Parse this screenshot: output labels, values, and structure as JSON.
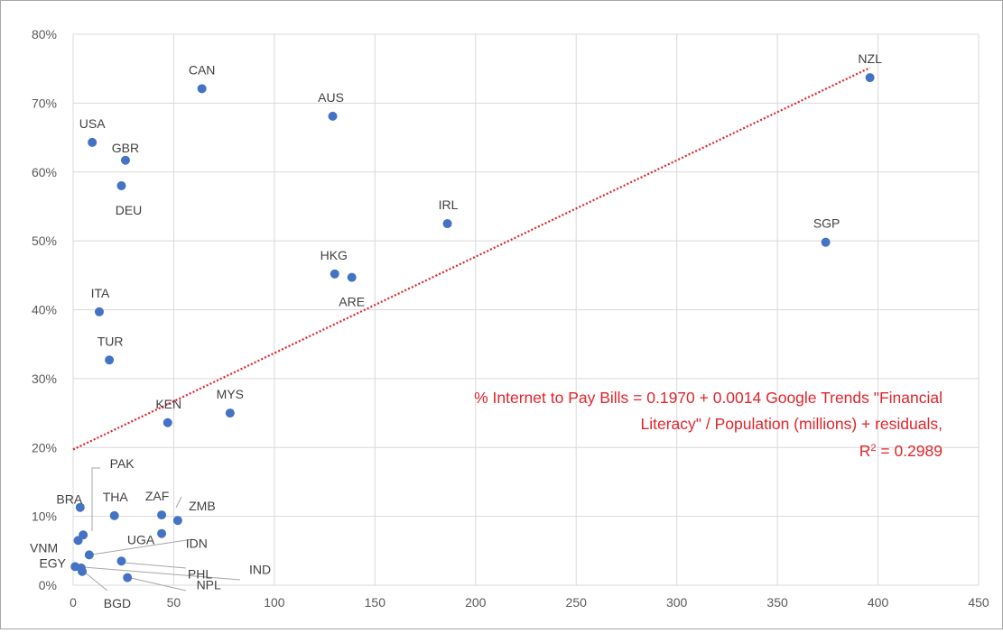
{
  "chart_data": {
    "type": "scatter",
    "xlim": [
      0,
      450
    ],
    "ylim": [
      0,
      0.8
    ],
    "x_ticks": [
      0,
      50,
      100,
      150,
      200,
      250,
      300,
      350,
      400,
      450
    ],
    "x_tick_labels": [
      "0",
      "50",
      "100",
      "150",
      "200",
      "250",
      "300",
      "350",
      "400",
      "450"
    ],
    "y_ticks": [
      0,
      0.1,
      0.2,
      0.3,
      0.4,
      0.5,
      0.6,
      0.7,
      0.8
    ],
    "y_tick_labels": [
      "0%",
      "10%",
      "20%",
      "30%",
      "40%",
      "50%",
      "60%",
      "70%",
      "80%"
    ],
    "grid": true,
    "point_color": "#4472C4",
    "trendline": {
      "style": "dotted",
      "color": "#E3242B",
      "intercept": 0.197,
      "slope": 0.0014,
      "x_range": [
        0,
        396
      ]
    },
    "annotation": {
      "color": "#E3242B",
      "line1": "% Internet to Pay Bills = 0.1970 + 0.0014 Google Trends \"Financial",
      "line2": "Literacy\" / Population (millions)  + residuals,",
      "r2_prefix": "R",
      "r2_sup": "2",
      "r2_value": " = 0.2989"
    },
    "points": [
      {
        "label": "NZL",
        "x": 396,
        "y": 0.737
      },
      {
        "label": "CAN",
        "x": 64,
        "y": 0.721
      },
      {
        "label": "AUS",
        "x": 129,
        "y": 0.681
      },
      {
        "label": "USA",
        "x": 9.5,
        "y": 0.643
      },
      {
        "label": "GBR",
        "x": 26,
        "y": 0.617
      },
      {
        "label": "DEU",
        "x": 24,
        "y": 0.58
      },
      {
        "label": "IRL",
        "x": 186,
        "y": 0.525
      },
      {
        "label": "SGP",
        "x": 374,
        "y": 0.498
      },
      {
        "label": "HKG",
        "x": 130,
        "y": 0.452
      },
      {
        "label": "ARE",
        "x": 138.5,
        "y": 0.447
      },
      {
        "label": "ITA",
        "x": 13,
        "y": 0.397
      },
      {
        "label": "TUR",
        "x": 18,
        "y": 0.327
      },
      {
        "label": "MYS",
        "x": 78,
        "y": 0.25
      },
      {
        "label": "KEN",
        "x": 47,
        "y": 0.236
      },
      {
        "label": "BRA",
        "x": 3.5,
        "y": 0.113
      },
      {
        "label": "THA",
        "x": 20.5,
        "y": 0.101
      },
      {
        "label": "ZAF",
        "x": 44,
        "y": 0.102
      },
      {
        "label": "ZMB",
        "x": 52,
        "y": 0.094
      },
      {
        "label": "UGA",
        "x": 44,
        "y": 0.075
      },
      {
        "label": "PAK",
        "x": 5,
        "y": 0.073
      },
      {
        "label": "VNM",
        "x": 2.5,
        "y": 0.065
      },
      {
        "label": "IDN",
        "x": 8,
        "y": 0.044
      },
      {
        "label": "PHL",
        "x": 24,
        "y": 0.035
      },
      {
        "label": "EGY",
        "x": 1,
        "y": 0.027
      },
      {
        "label": "BGD",
        "x": 4,
        "y": 0.025
      },
      {
        "label": "IND",
        "x": 4.5,
        "y": 0.02
      },
      {
        "label": "NPL",
        "x": 27,
        "y": 0.011
      }
    ]
  }
}
